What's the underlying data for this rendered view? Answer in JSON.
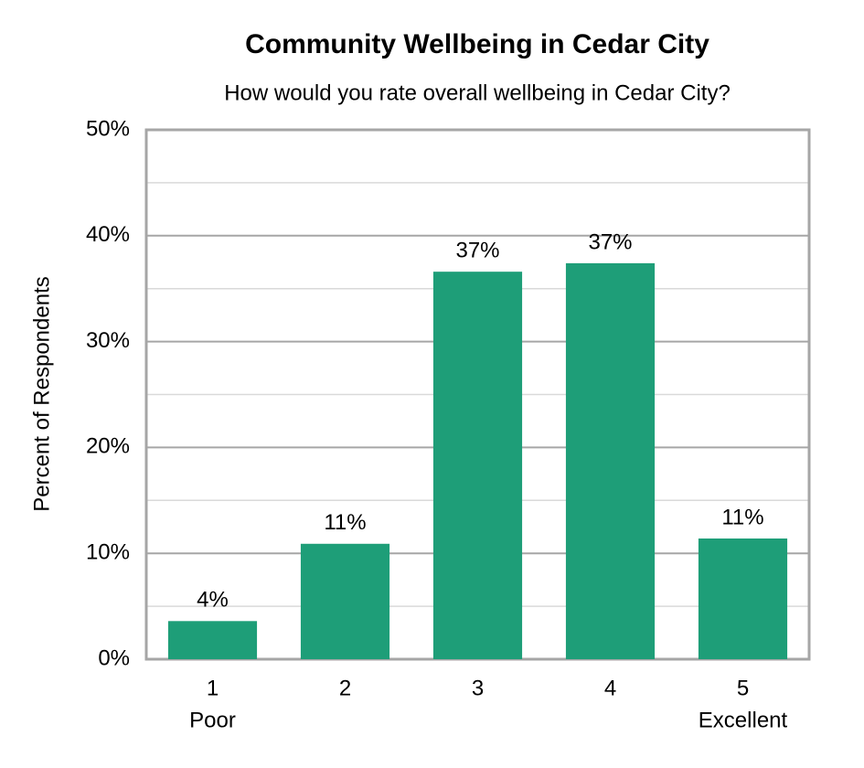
{
  "chart_data": {
    "type": "bar",
    "title": "Community Wellbeing in Cedar City",
    "subtitle": "How would you rate overall wellbeing in Cedar City?",
    "y_label": "Percent of Respondents",
    "categories": [
      "1",
      "2",
      "3",
      "4",
      "5"
    ],
    "category_sublabels": [
      "Poor",
      null,
      null,
      null,
      "Excellent"
    ],
    "values": [
      3.6,
      10.9,
      36.6,
      37.4,
      11.4
    ],
    "value_labels": [
      "4%",
      "11%",
      "37%",
      "37%",
      "11%"
    ],
    "color": "#1e9e78",
    "ylim": [
      0,
      50
    ],
    "yticks": [
      {
        "value": 0,
        "label": "0%"
      },
      {
        "value": 10,
        "label": "10%"
      },
      {
        "value": 20,
        "label": "20%"
      },
      {
        "value": 30,
        "label": "30%"
      },
      {
        "value": 40,
        "label": "40%"
      },
      {
        "value": 50,
        "label": "50%"
      }
    ],
    "minor_yticks": [
      5,
      15,
      25,
      35,
      45
    ],
    "grid": true
  }
}
